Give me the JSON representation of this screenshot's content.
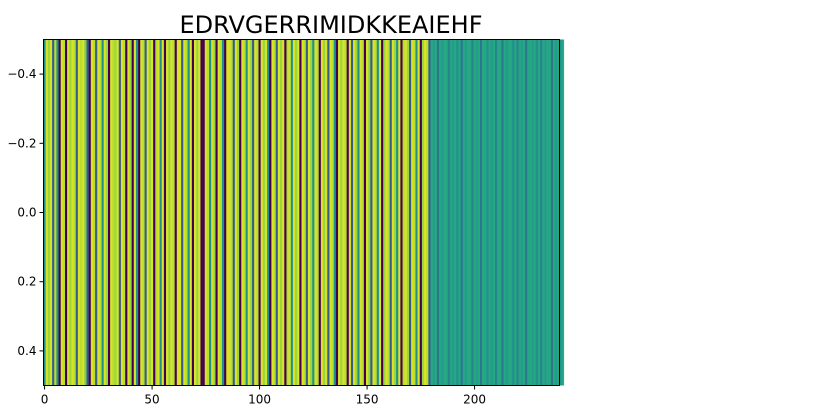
{
  "chart_data": {
    "type": "heatmap",
    "title": "EDRVGERRIMIDKKEAIEHF",
    "xlabel": "",
    "ylabel": "",
    "colormap": "viridis",
    "n_columns": 240,
    "xlim": [
      -0.5,
      239.5
    ],
    "ylim": [
      0.5,
      -0.5
    ],
    "x_ticks": [
      0,
      50,
      100,
      150,
      200
    ],
    "y_ticks": [
      -0.4,
      -0.2,
      0.0,
      0.2,
      0.4
    ],
    "x_tick_labels": [
      "0",
      "50",
      "100",
      "150",
      "200"
    ],
    "y_tick_labels": [
      "−0.4",
      "−0.2",
      "0.0",
      "0.2",
      "0.4"
    ],
    "grid": false,
    "legend": "none",
    "values": [
      0.5,
      0.95,
      0.85,
      0.95,
      0.3,
      0.9,
      0.5,
      0.0,
      0.95,
      0.9,
      0.0,
      0.95,
      0.85,
      0.95,
      0.9,
      0.3,
      0.95,
      0.9,
      0.95,
      0.8,
      0.3,
      0.0,
      0.95,
      0.9,
      0.3,
      0.95,
      0.9,
      0.5,
      0.95,
      0.85,
      0.0,
      0.95,
      0.9,
      0.85,
      0.95,
      0.3,
      0.95,
      0.9,
      0.0,
      0.95,
      0.85,
      0.0,
      0.95,
      0.5,
      0.0,
      0.95,
      0.9,
      0.3,
      0.95,
      0.85,
      0.95,
      0.0,
      0.9,
      0.95,
      0.5,
      0.95,
      0.0,
      0.95,
      0.85,
      0.95,
      0.9,
      0.0,
      0.95,
      0.95,
      0.3,
      0.95,
      0.9,
      0.5,
      0.95,
      0.0,
      0.95,
      0.85,
      0.95,
      0.0,
      0.0,
      0.95,
      0.9,
      0.5,
      0.95,
      0.85,
      0.0,
      0.95,
      0.9,
      0.5,
      0.0,
      0.95,
      0.95,
      0.9,
      0.3,
      0.95,
      0.85,
      0.0,
      0.95,
      0.9,
      0.5,
      0.95,
      0.85,
      0.3,
      0.95,
      0.9,
      0.0,
      0.95,
      0.85,
      0.95,
      0.5,
      0.0,
      0.95,
      0.9,
      0.3,
      0.95,
      0.85,
      0.95,
      0.0,
      0.9,
      0.95,
      0.5,
      0.95,
      0.85,
      0.95,
      0.0,
      0.95,
      0.9,
      0.3,
      0.95,
      0.85,
      0.5,
      0.95,
      0.9,
      0.0,
      0.95,
      0.85,
      0.95,
      0.3,
      0.95,
      0.9,
      0.5,
      0.0,
      0.95,
      0.85,
      0.95,
      0.9,
      0.0,
      0.95,
      0.3,
      0.95,
      0.85,
      0.5,
      0.95,
      0.9,
      0.0,
      0.95,
      0.85,
      0.3,
      0.95,
      0.9,
      0.5,
      0.95,
      0.0,
      0.85,
      0.95,
      0.9,
      0.3,
      0.95,
      0.85,
      0.5,
      0.95,
      0.0,
      0.9,
      0.95,
      0.85,
      0.3,
      0.95,
      0.9,
      0.5,
      0.95,
      0.0,
      0.85,
      0.95,
      0.9,
      0.3,
      0.6,
      0.55,
      0.6,
      0.4,
      0.6,
      0.55,
      0.6,
      0.6,
      0.45,
      0.6,
      0.55,
      0.6,
      0.5,
      0.6,
      0.4,
      0.6,
      0.55,
      0.6,
      0.6,
      0.45,
      0.6,
      0.55,
      0.6,
      0.4,
      0.6,
      0.6,
      0.5,
      0.6,
      0.55,
      0.6,
      0.45,
      0.6,
      0.6,
      0.4,
      0.6,
      0.55,
      0.6,
      0.6,
      0.5,
      0.6,
      0.45,
      0.6,
      0.55,
      0.6,
      0.4,
      0.6,
      0.6,
      0.55,
      0.6,
      0.5,
      0.6,
      0.45,
      0.6,
      0.55,
      0.6,
      0.6,
      0.4,
      0.6,
      0.55,
      0.6,
      0.5,
      0.6
    ]
  }
}
